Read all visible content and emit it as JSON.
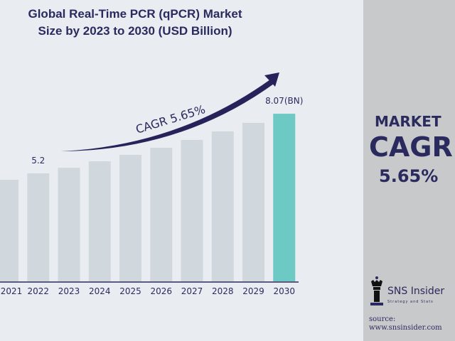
{
  "chart_data": {
    "type": "bar",
    "title": "Global Real-Time PCR (qPCR) Market Size by 2023 to 2030 (USD Billion)",
    "categories": [
      "2021",
      "2022",
      "2023",
      "2024",
      "2025",
      "2026",
      "2027",
      "2028",
      "2029",
      "2030"
    ],
    "values": [
      4.89,
      5.2,
      5.47,
      5.78,
      6.09,
      6.43,
      6.81,
      7.22,
      7.63,
      8.07
    ],
    "data_labels": {
      "2022": "5.2",
      "2030": "8.07(BN)"
    },
    "annotation": "CAGR  5.65%",
    "ylim": [
      0,
      8.5
    ],
    "grid": false,
    "colors": {
      "bar": "#d1d8dd",
      "highlight": "#6cc9c3",
      "arrow": "#27235a",
      "text": "#2b2a5e"
    }
  },
  "side_panel": {
    "market_label": "MARKET",
    "cagr_label": "CAGR",
    "cagr_value": "5.65%",
    "brand": "SNS Insider",
    "brand_sub": "Strategy and Stats",
    "source": "source: www.snsinsider.com"
  }
}
